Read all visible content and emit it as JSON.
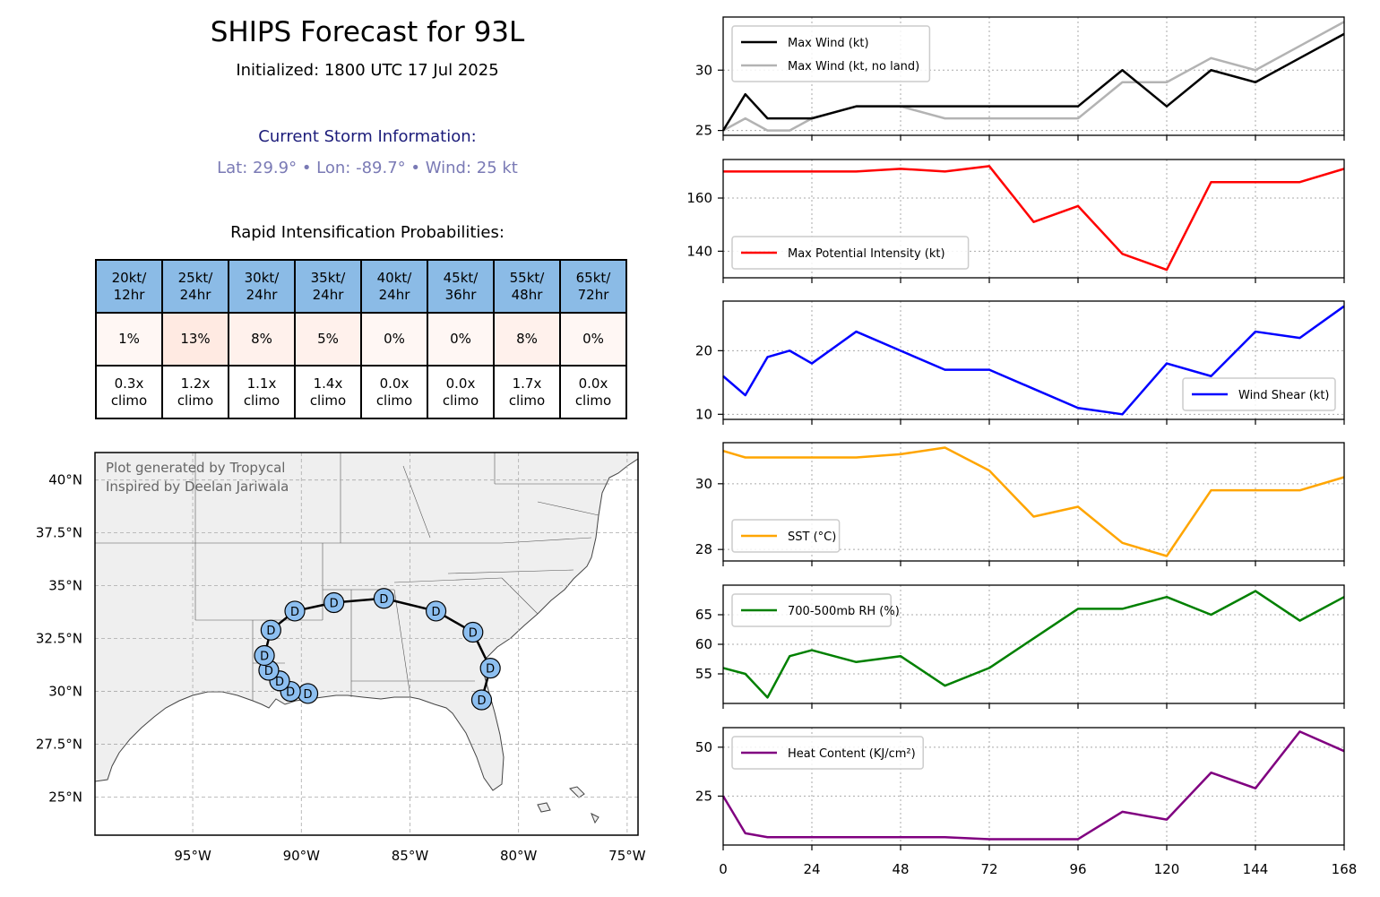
{
  "header": {
    "title": "SHIPS Forecast for 93L",
    "initialized": "Initialized: 1800 UTC 17 Jul 2025",
    "storm_info_title": "Current Storm Information:",
    "storm_info_line": "Lat: 29.9°  • Lon: -89.7°  • Wind: 25 kt",
    "ri_title": "Rapid Intensification Probabilities:"
  },
  "ri_table": {
    "columns": [
      {
        "label1": "20kt/",
        "label2": "12hr",
        "prob": "1%",
        "climo1": "0.3x",
        "climo2": "climo",
        "prob_value": 1
      },
      {
        "label1": "25kt/",
        "label2": "24hr",
        "prob": "13%",
        "climo1": "1.2x",
        "climo2": "climo",
        "prob_value": 13
      },
      {
        "label1": "30kt/",
        "label2": "24hr",
        "prob": "8%",
        "climo1": "1.1x",
        "climo2": "climo",
        "prob_value": 8
      },
      {
        "label1": "35kt/",
        "label2": "24hr",
        "prob": "5%",
        "climo1": "1.4x",
        "climo2": "climo",
        "prob_value": 5
      },
      {
        "label1": "40kt/",
        "label2": "24hr",
        "prob": "0%",
        "climo1": "0.0x",
        "climo2": "climo",
        "prob_value": 0
      },
      {
        "label1": "45kt/",
        "label2": "36hr",
        "prob": "0%",
        "climo1": "0.0x",
        "climo2": "climo",
        "prob_value": 0
      },
      {
        "label1": "55kt/",
        "label2": "48hr",
        "prob": "8%",
        "climo1": "1.7x",
        "climo2": "climo",
        "prob_value": 8
      },
      {
        "label1": "65kt/",
        "label2": "72hr",
        "prob": "0%",
        "climo1": "0.0x",
        "climo2": "climo",
        "prob_value": 0
      }
    ]
  },
  "map": {
    "watermark1": "Plot generated by Tropycal",
    "watermark2": "Inspired by Deelan Jariwala",
    "lon_range": [
      -99.5,
      -74.5
    ],
    "lat_range": [
      23.2,
      41.3
    ],
    "lon_ticks": [
      {
        "v": -95,
        "label": "95°W"
      },
      {
        "v": -90,
        "label": "90°W"
      },
      {
        "v": -85,
        "label": "85°W"
      },
      {
        "v": -80,
        "label": "80°W"
      },
      {
        "v": -75,
        "label": "75°W"
      }
    ],
    "lat_ticks": [
      {
        "v": 40,
        "label": "40°N"
      },
      {
        "v": 37.5,
        "label": "37.5°N"
      },
      {
        "v": 35,
        "label": "35°N"
      },
      {
        "v": 32.5,
        "label": "32.5°N"
      },
      {
        "v": 30,
        "label": "30°N"
      },
      {
        "v": 27.5,
        "label": "27.5°N"
      },
      {
        "v": 25,
        "label": "25°N"
      }
    ],
    "land_color": "#efefef",
    "track_points": [
      {
        "lon": -89.7,
        "lat": 29.9,
        "label": "D"
      },
      {
        "lon": -90.5,
        "lat": 30.0,
        "label": "D"
      },
      {
        "lon": -91.0,
        "lat": 30.5,
        "label": "D"
      },
      {
        "lon": -91.5,
        "lat": 31.0,
        "label": "D"
      },
      {
        "lon": -91.7,
        "lat": 31.7,
        "label": "D"
      },
      {
        "lon": -91.4,
        "lat": 32.9,
        "label": "D"
      },
      {
        "lon": -90.3,
        "lat": 33.8,
        "label": "D"
      },
      {
        "lon": -88.5,
        "lat": 34.2,
        "label": "D"
      },
      {
        "lon": -86.2,
        "lat": 34.4,
        "label": "D"
      },
      {
        "lon": -83.8,
        "lat": 33.8,
        "label": "D"
      },
      {
        "lon": -82.1,
        "lat": 32.8,
        "label": "D"
      },
      {
        "lon": -81.3,
        "lat": 31.1,
        "label": "D"
      },
      {
        "lon": -81.7,
        "lat": 29.6,
        "label": "D"
      }
    ],
    "point_color": "#8dbff0"
  },
  "chart_data": [
    {
      "type": "line",
      "x": [
        0,
        6,
        12,
        18,
        24,
        36,
        48,
        60,
        72,
        84,
        96,
        108,
        120,
        132,
        144,
        156,
        168
      ],
      "series": [
        {
          "name": "Max Wind (kt)",
          "color": "#000000",
          "values": [
            25,
            28,
            26,
            26,
            26,
            27,
            27,
            27,
            27,
            27,
            27,
            30,
            27,
            30,
            29,
            31,
            33
          ]
        },
        {
          "name": "Max Wind (kt, no land)",
          "color": "#b3b3b3",
          "values": [
            25,
            26,
            25,
            25,
            26,
            27,
            27,
            26,
            26,
            26,
            26,
            29,
            29,
            31,
            30,
            32,
            34
          ]
        }
      ],
      "xlim": [
        0,
        168
      ],
      "ylim": [
        24.6,
        34.4
      ],
      "yticks": [
        25,
        30
      ],
      "legend": "top-left",
      "grid": true
    },
    {
      "type": "line",
      "x": [
        0,
        6,
        12,
        18,
        24,
        36,
        48,
        60,
        72,
        84,
        96,
        108,
        120,
        132,
        144,
        156,
        168
      ],
      "series": [
        {
          "name": "Max Potential Intensity (kt)",
          "color": "#ff0000",
          "values": [
            170,
            170,
            170,
            170,
            170,
            170,
            171,
            170,
            172,
            151,
            157,
            139,
            133,
            166,
            166,
            166,
            171
          ]
        }
      ],
      "xlim": [
        0,
        168
      ],
      "ylim": [
        130,
        174.5
      ],
      "yticks": [
        140,
        160
      ],
      "legend": "bottom-left",
      "grid": true
    },
    {
      "type": "line",
      "x": [
        0,
        6,
        12,
        18,
        24,
        36,
        48,
        60,
        72,
        84,
        96,
        108,
        120,
        132,
        144,
        156,
        168
      ],
      "series": [
        {
          "name": "Wind Shear (kt)",
          "color": "#0000ff",
          "values": [
            16,
            13,
            19,
            20,
            18,
            23,
            20,
            17,
            17,
            14,
            11,
            10,
            18,
            16,
            23,
            22,
            27
          ]
        }
      ],
      "xlim": [
        0,
        168
      ],
      "ylim": [
        9.2,
        27.8
      ],
      "yticks": [
        10,
        20
      ],
      "legend": "bottom-right",
      "grid": true
    },
    {
      "type": "line",
      "x": [
        0,
        6,
        12,
        18,
        24,
        36,
        48,
        60,
        72,
        84,
        96,
        108,
        120,
        132,
        144,
        156,
        168
      ],
      "series": [
        {
          "name": "SST (°C)",
          "color": "#ffa500",
          "values": [
            31.0,
            30.8,
            30.8,
            30.8,
            30.8,
            30.8,
            30.9,
            31.1,
            30.4,
            29.0,
            29.3,
            28.2,
            27.8,
            29.8,
            29.8,
            29.8,
            30.2
          ]
        }
      ],
      "xlim": [
        0,
        168
      ],
      "ylim": [
        27.65,
        31.25
      ],
      "yticks": [
        28,
        30
      ],
      "legend": "bottom-left",
      "grid": true
    },
    {
      "type": "line",
      "x": [
        0,
        6,
        12,
        18,
        24,
        36,
        48,
        60,
        72,
        84,
        96,
        108,
        120,
        132,
        144,
        156,
        168
      ],
      "series": [
        {
          "name": "700-500mb RH (%)",
          "color": "#008000",
          "values": [
            56,
            55,
            51,
            58,
            59,
            57,
            58,
            53,
            56,
            61,
            66,
            66,
            68,
            65,
            69,
            64,
            68
          ]
        }
      ],
      "xlim": [
        0,
        168
      ],
      "ylim": [
        50,
        70
      ],
      "yticks": [
        55,
        60,
        65
      ],
      "legend": "top-left",
      "grid": true
    },
    {
      "type": "line",
      "x": [
        0,
        6,
        12,
        18,
        24,
        36,
        48,
        60,
        72,
        84,
        96,
        108,
        120,
        132,
        144,
        156,
        168
      ],
      "series": [
        {
          "name": "Heat Content (KJ/cm²)",
          "color": "#800080",
          "values": [
            25,
            6,
            4,
            4,
            4,
            4,
            4,
            4,
            3,
            3,
            3,
            17,
            13,
            37,
            29,
            58,
            48
          ]
        }
      ],
      "xlim": [
        0,
        168
      ],
      "ylim": [
        0,
        60
      ],
      "yticks": [
        25,
        50
      ],
      "legend": "top-left",
      "grid": true,
      "xticks": [
        0,
        24,
        48,
        72,
        96,
        120,
        144,
        168
      ]
    }
  ]
}
